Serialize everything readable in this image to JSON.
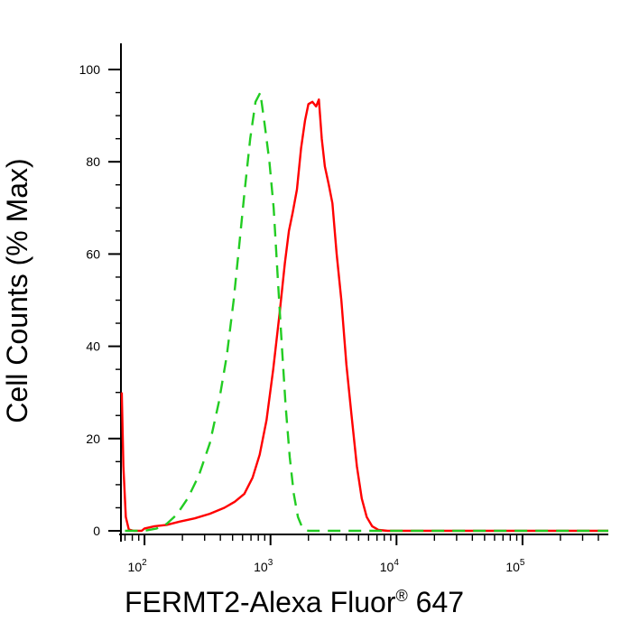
{
  "chart_data": {
    "type": "line",
    "title": "",
    "xlabel": "FERMT2-Alexa Fluor",
    "xlabel_superscript": "®",
    "xlabel_suffix": " 647",
    "ylabel": "Cell Counts (% Max)",
    "x_scale": "log",
    "xlim": [
      65,
      480000
    ],
    "ylim": [
      0,
      100
    ],
    "grid": false,
    "legend": "none",
    "y_ticks": [
      0,
      20,
      40,
      60,
      80,
      100
    ],
    "y_tick_labels": [
      "0",
      "20",
      "40",
      "60",
      "80",
      "100"
    ],
    "x_ticks": [
      100,
      1000,
      10000,
      100000
    ],
    "x_tick_labels": [
      {
        "base": "10",
        "exp": "2"
      },
      {
        "base": "10",
        "exp": "3"
      },
      {
        "base": "10",
        "exp": "4"
      },
      {
        "base": "10",
        "exp": "5"
      }
    ],
    "series": [
      {
        "color": "#ff0000",
        "dash": "solid",
        "points": [
          [
            66,
            30
          ],
          [
            68,
            14
          ],
          [
            71,
            3
          ],
          [
            75,
            0.3
          ],
          [
            82,
            0
          ],
          [
            95,
            0
          ],
          [
            100,
            0.5
          ],
          [
            120,
            1
          ],
          [
            150,
            1.3
          ],
          [
            190,
            2
          ],
          [
            250,
            2.7
          ],
          [
            330,
            3.7
          ],
          [
            430,
            5
          ],
          [
            520,
            6.3
          ],
          [
            620,
            8
          ],
          [
            720,
            11.5
          ],
          [
            820,
            16.5
          ],
          [
            930,
            24
          ],
          [
            1050,
            35
          ],
          [
            1180,
            47
          ],
          [
            1300,
            58
          ],
          [
            1400,
            65
          ],
          [
            1500,
            69
          ],
          [
            1620,
            74
          ],
          [
            1750,
            83
          ],
          [
            1880,
            89
          ],
          [
            2000,
            92.5
          ],
          [
            2150,
            93
          ],
          [
            2300,
            92
          ],
          [
            2420,
            93.5
          ],
          [
            2550,
            85
          ],
          [
            2700,
            79
          ],
          [
            2900,
            75
          ],
          [
            3100,
            71
          ],
          [
            3350,
            60
          ],
          [
            3650,
            50
          ],
          [
            4000,
            36
          ],
          [
            4400,
            25
          ],
          [
            4850,
            14
          ],
          [
            5300,
            7
          ],
          [
            5800,
            3
          ],
          [
            6400,
            1
          ],
          [
            7200,
            0.2
          ],
          [
            8500,
            0
          ],
          [
            20000,
            0
          ],
          [
            100000,
            0
          ],
          [
            480000,
            0
          ]
        ]
      },
      {
        "color": "#22cc22",
        "dash": "dashed",
        "points": [
          [
            70,
            0
          ],
          [
            100,
            0
          ],
          [
            125,
            0.5
          ],
          [
            150,
            1.5
          ],
          [
            180,
            3.5
          ],
          [
            220,
            7
          ],
          [
            270,
            12
          ],
          [
            330,
            19
          ],
          [
            390,
            28
          ],
          [
            450,
            38
          ],
          [
            510,
            50
          ],
          [
            560,
            61
          ],
          [
            620,
            73
          ],
          [
            690,
            85
          ],
          [
            760,
            93
          ],
          [
            830,
            95
          ],
          [
            900,
            88
          ],
          [
            980,
            80
          ],
          [
            1060,
            70
          ],
          [
            1140,
            55
          ],
          [
            1230,
            40
          ],
          [
            1320,
            27
          ],
          [
            1420,
            16
          ],
          [
            1530,
            8
          ],
          [
            1650,
            3
          ],
          [
            1800,
            0.5
          ],
          [
            2000,
            0
          ],
          [
            10000,
            0
          ],
          [
            100000,
            0
          ],
          [
            480000,
            0
          ]
        ]
      }
    ]
  }
}
